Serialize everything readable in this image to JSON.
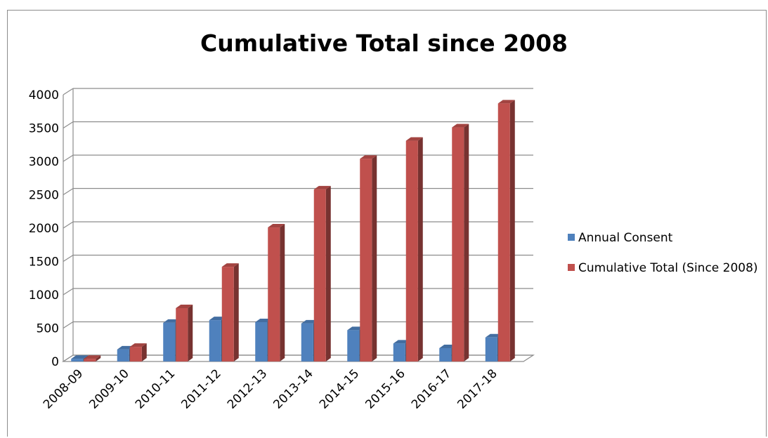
{
  "chart_data": {
    "type": "bar",
    "title": "Cumulative Total since 2008",
    "xlabel": "",
    "ylabel": "",
    "categories": [
      "2008-09",
      "2009-10",
      "2010-11",
      "2011-12",
      "2012-13",
      "2013-14",
      "2014-15",
      "2015-16",
      "2016-17",
      "2017-18"
    ],
    "series": [
      {
        "name": "Annual Consent",
        "color": "#4f81bd",
        "values": [
          40,
          180,
          580,
          620,
          590,
          570,
          470,
          270,
          200,
          360
        ]
      },
      {
        "name": "Cumulative Total (Since 2008)",
        "color": "#c0504d",
        "values": [
          40,
          220,
          800,
          1420,
          2010,
          2580,
          3040,
          3310,
          3510,
          3870
        ]
      }
    ],
    "yticks": [
      "0",
      "500",
      "1000",
      "1500",
      "2000",
      "2500",
      "3000",
      "3500",
      "4000"
    ],
    "ylim": [
      0,
      4000
    ],
    "grid": true,
    "legend_position": "right"
  }
}
